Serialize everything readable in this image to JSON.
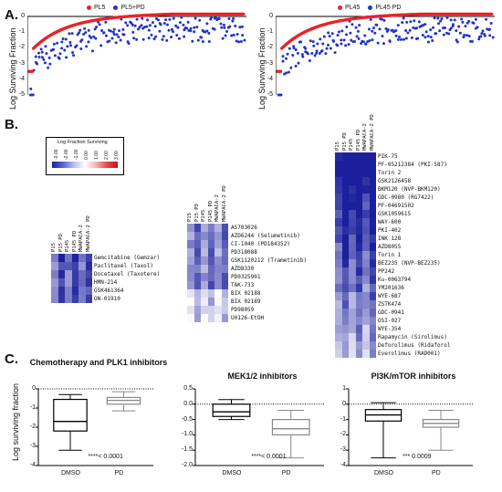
{
  "panel_labels": {
    "A": "A.",
    "B": "B.",
    "C": "C."
  },
  "panelA": {
    "ylabel": "Log Surviving Fraction",
    "left": {
      "legend": [
        {
          "label": "PL5",
          "color": "#e8232a"
        },
        {
          "label": "PL5+PD",
          "color": "#2233cc"
        }
      ],
      "yticks": [
        "0",
        "-1",
        "-2",
        "-3",
        "-4",
        "-5"
      ]
    },
    "right": {
      "legend": [
        {
          "label": "PL45",
          "color": "#e8232a"
        },
        {
          "label": "PL45 PD",
          "color": "#2233cc"
        }
      ],
      "yticks": [
        "0",
        "-1",
        "-2",
        "-3",
        "-4",
        "-5"
      ]
    }
  },
  "panelB": {
    "legend_title": "Log Fraction Surviving",
    "legend_values": [
      "-3.00",
      "-2.00",
      "-1.00",
      "0.00",
      "1.00",
      "2.00",
      "3.00"
    ],
    "columns": [
      "P15",
      "P15 PD",
      "P145",
      "P145 PD",
      "MWAPACA-2",
      "MWAPACA-2 PD"
    ],
    "group1_drugs": [
      "Gemcitabine (Gemzar)",
      "Paclitaxel (Taxol)",
      "Docetaxel (Taxotere)",
      "HMN-214",
      "GSK461364",
      "ON-01910"
    ],
    "group2_drugs": [
      "AS703026",
      "AZD6244 (Selumetinib)",
      "CI-1040 (PD184352)",
      "PD318088",
      "GSK1120212 (Trametinib)",
      "AZD8330",
      "PD0325901",
      "TAK-733",
      "BIX 02188",
      "BIX 02189",
      "PD98059",
      "U0126-EtOH"
    ],
    "group3_drugs": [
      "PIK-75",
      "PF-05212384 (PKI-587)",
      "Torin 2",
      "GSK2126458",
      "BKM120 (NVP-BKM120)",
      "GDC-0980 (RG7422)",
      "PF-04691502",
      "GSK1059615",
      "WAY-600",
      "PKI-402",
      "INK 128",
      "AZD8055",
      "Torin 1",
      "BEZ235 (NVP-BEZ235)",
      "PP242",
      "Ku-0063794",
      "YM201636",
      "WYE-687",
      "ZSTK474",
      "GDC-0941",
      "OSI-027",
      "WYE-354",
      "Rapamycin (Sirolimus)",
      "Deforolimus (Ridaforol",
      "Everolimus (RAD001)"
    ]
  },
  "panelC": {
    "ylabel": "Log surviving fraction",
    "chart_data": [
      {
        "type": "box",
        "title": "Chemotherapy and PLK1 inhibitors",
        "categories": [
          "DMSO",
          "PD"
        ],
        "boxes": [
          {
            "min": -3.2,
            "q1": -2.2,
            "median": -1.7,
            "q3": -0.55,
            "max": -0.3
          },
          {
            "min": -1.15,
            "q1": -0.8,
            "median": -0.6,
            "q3": -0.45,
            "max": -0.15
          }
        ],
        "ylim": [
          -4,
          0
        ],
        "yticks": [
          "0",
          "-1",
          "-2",
          "-3",
          "-4"
        ],
        "pvalue": "****< 0.0001"
      },
      {
        "type": "box",
        "title": "MEK1/2 inhibitors",
        "categories": [
          "DMSO",
          "PD"
        ],
        "boxes": [
          {
            "min": -0.5,
            "q1": -0.4,
            "median": -0.25,
            "q3": 0.0,
            "max": 0.15
          },
          {
            "min": -1.75,
            "q1": -1.0,
            "median": -0.8,
            "q3": -0.5,
            "max": -0.2
          }
        ],
        "ylim": [
          -2.0,
          0.5
        ],
        "yticks": [
          "0.5",
          "0.0",
          "-0.5",
          "-1.0",
          "-1.5",
          "-2.0"
        ],
        "pvalue": "****< 0.0001"
      },
      {
        "type": "box",
        "title": "PI3K/mTOR inhibitors",
        "categories": [
          "DMSO",
          "PD"
        ],
        "boxes": [
          {
            "min": -3.5,
            "q1": -1.1,
            "median": -0.7,
            "q3": -0.35,
            "max": 0.1
          },
          {
            "min": -3.0,
            "q1": -1.5,
            "median": -1.25,
            "q3": -1.0,
            "max": -0.4
          }
        ],
        "ylim": [
          -4,
          1
        ],
        "yticks": [
          "1",
          "0",
          "-1",
          "-2",
          "-3",
          "-4"
        ],
        "pvalue": "*** 0.0009"
      }
    ]
  }
}
